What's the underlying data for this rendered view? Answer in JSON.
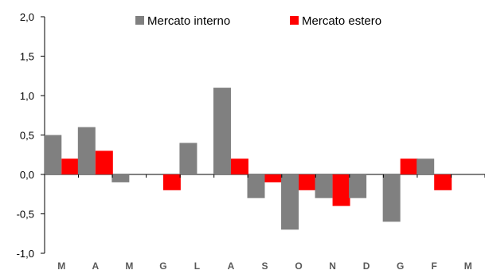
{
  "chart_data": {
    "type": "bar",
    "title": "",
    "xlabel": "",
    "ylabel": "",
    "ylim": [
      -1.0,
      2.0
    ],
    "y_ticks": [
      "2,0",
      "1,5",
      "1,0",
      "0,5",
      "0,0",
      "-0,5",
      "-1,0"
    ],
    "categories": [
      "M",
      "A",
      "M",
      "G",
      "L",
      "A",
      "S",
      "O",
      "N",
      "D",
      "G",
      "F",
      "M"
    ],
    "series": [
      {
        "name": "Mercato interno",
        "color": "#808080",
        "values": [
          0.5,
          0.6,
          -0.1,
          null,
          0.4,
          1.1,
          -0.3,
          -0.7,
          -0.3,
          -0.3,
          -0.6,
          0.2,
          null
        ]
      },
      {
        "name": "Mercato estero",
        "color": "#ff0000",
        "values": [
          0.2,
          0.3,
          null,
          -0.2,
          null,
          0.2,
          -0.1,
          -0.2,
          -0.4,
          null,
          0.2,
          -0.2,
          null
        ]
      }
    ],
    "legend_position": "top",
    "grid": false
  }
}
